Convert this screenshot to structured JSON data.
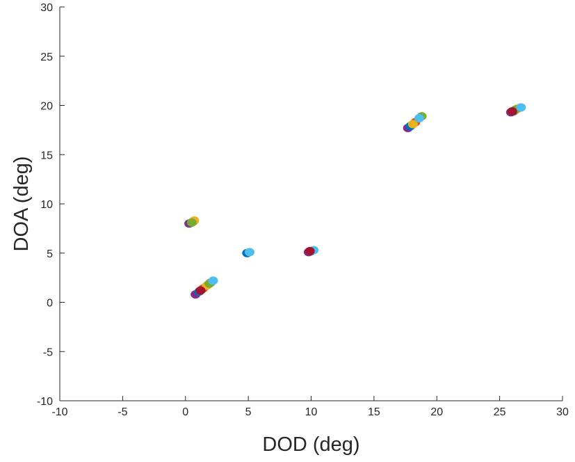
{
  "chart_data": {
    "type": "scatter",
    "title": "",
    "xlabel": "DOD (deg)",
    "ylabel": "DOA (deg)",
    "xlim": [
      -10,
      30
    ],
    "ylim": [
      -10,
      30
    ],
    "xticks": [
      -10,
      -5,
      0,
      5,
      10,
      15,
      20,
      25,
      30
    ],
    "yticks": [
      -10,
      -5,
      0,
      5,
      10,
      15,
      20,
      25,
      30
    ],
    "xtick_labels": [
      "-10",
      "-5",
      "0",
      "5",
      "10",
      "15",
      "20",
      "25",
      "30"
    ],
    "ytick_labels": [
      "-10",
      "-5",
      "0",
      "5",
      "10",
      "15",
      "20",
      "25",
      "30"
    ],
    "grid": false,
    "box": "left-bottom axes only",
    "colors": [
      "#0072BD",
      "#D95319",
      "#EDB120",
      "#7E2F8E",
      "#77AC30",
      "#4DBEEE",
      "#A2142F"
    ],
    "series": [
      {
        "color": "#7E2F8E",
        "points": [
          [
            0.8,
            0.8
          ],
          [
            17.7,
            17.7
          ],
          [
            9.8,
            5.1
          ],
          [
            25.9,
            19.3
          ],
          [
            0.3,
            8.0
          ]
        ]
      },
      {
        "color": "#0072BD",
        "points": [
          [
            1.1,
            1.1
          ],
          [
            17.9,
            17.9
          ],
          [
            10.0,
            5.2
          ],
          [
            26.1,
            19.4
          ],
          [
            4.9,
            5.0
          ]
        ]
      },
      {
        "color": "#D95319",
        "points": [
          [
            1.4,
            1.4
          ],
          [
            18.3,
            18.3
          ],
          [
            26.2,
            19.5
          ],
          [
            0.6,
            8.2
          ],
          [
            2.0,
            2.0
          ]
        ]
      },
      {
        "color": "#EDB120",
        "points": [
          [
            1.7,
            1.7
          ],
          [
            18.1,
            18.1
          ],
          [
            26.5,
            19.7
          ],
          [
            0.7,
            8.3
          ]
        ]
      },
      {
        "color": "#77AC30",
        "points": [
          [
            1.9,
            1.9
          ],
          [
            18.8,
            18.9
          ],
          [
            0.5,
            8.1
          ],
          [
            26.3,
            19.6
          ]
        ]
      },
      {
        "color": "#4DBEEE",
        "points": [
          [
            2.2,
            2.2
          ],
          [
            18.6,
            18.7
          ],
          [
            5.1,
            5.1
          ],
          [
            26.7,
            19.8
          ],
          [
            10.2,
            5.3
          ]
        ]
      },
      {
        "color": "#A2142F",
        "points": [
          [
            1.2,
            1.2
          ],
          [
            9.9,
            5.2
          ],
          [
            26.0,
            19.4
          ]
        ]
      }
    ]
  }
}
